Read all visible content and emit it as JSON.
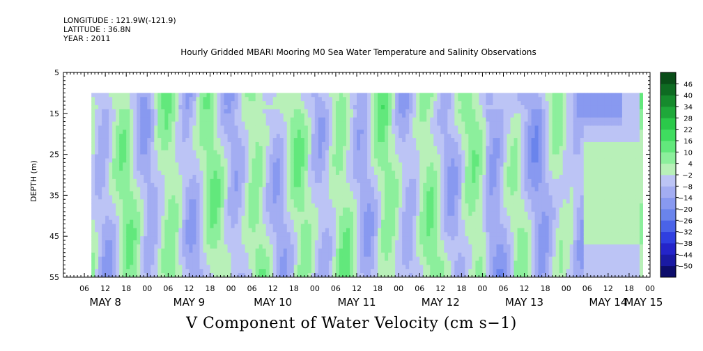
{
  "header": {
    "longitude": "LONGITUDE : 121.9W(-121.9)",
    "latitude": "LATITUDE : 36.8N",
    "year": "YEAR : 2011"
  },
  "chart_data": {
    "type": "heatmap",
    "title": "Hourly Gridded MBARI Mooring M0 Sea Water Temperature and Salinity Observations",
    "variable_label": "V Component of Water Velocity (cm s−1)",
    "ylabel": "DEPTH (m)",
    "y_range": [
      5,
      55
    ],
    "y_ticks": [
      5,
      15,
      25,
      35,
      45,
      55
    ],
    "y_tick_labels": [
      "5",
      "15",
      "25",
      "35",
      "45",
      "55"
    ],
    "y_inverted": true,
    "x_range_hours": [
      0,
      168
    ],
    "x_hour_ticks": [
      6,
      12,
      18,
      0,
      6,
      12,
      18,
      0,
      6,
      12,
      18,
      0,
      6,
      12,
      18,
      0,
      6,
      12,
      18,
      0,
      6,
      12,
      18,
      0,
      6,
      12,
      18,
      0
    ],
    "x_hour_tick_labels": [
      "06",
      "12",
      "18",
      "00",
      "06",
      "12",
      "18",
      "00",
      "06",
      "12",
      "18",
      "00",
      "06",
      "12",
      "18",
      "00",
      "06",
      "12",
      "18",
      "00",
      "06",
      "12",
      "18",
      "00",
      "06",
      "12",
      "18",
      "00"
    ],
    "x_day_labels": [
      "MAY  8",
      "MAY  9",
      "MAY 10",
      "MAY 11",
      "MAY 12",
      "MAY 13",
      "MAY 14",
      "MAY 15"
    ],
    "data_depth_range": [
      10,
      55
    ],
    "data_time_range_hours": [
      8,
      166
    ],
    "colorbar": {
      "levels": [
        -50,
        -44,
        -38,
        -32,
        -26,
        -20,
        -14,
        -8,
        -2,
        4,
        10,
        16,
        22,
        28,
        34,
        40,
        46
      ],
      "labels": [
        "46",
        "40",
        "34",
        "28",
        "22",
        "16",
        "10",
        "4",
        "−2",
        "−8",
        "−14",
        "−20",
        "−26",
        "−32",
        "−38",
        "−44",
        "−50"
      ],
      "colors_low_to_high": [
        "#0d0d6b",
        "#1a1aa3",
        "#2424c9",
        "#2f3fe0",
        "#4a63e8",
        "#6a84ec",
        "#8899f0",
        "#a3adf2",
        "#bcc4f5",
        "#b8f0b8",
        "#8cef9c",
        "#62e87c",
        "#3fdc5f",
        "#2bc94a",
        "#1fa83a",
        "#168a2d",
        "#0e6b22",
        "#094d18"
      ]
    }
  }
}
